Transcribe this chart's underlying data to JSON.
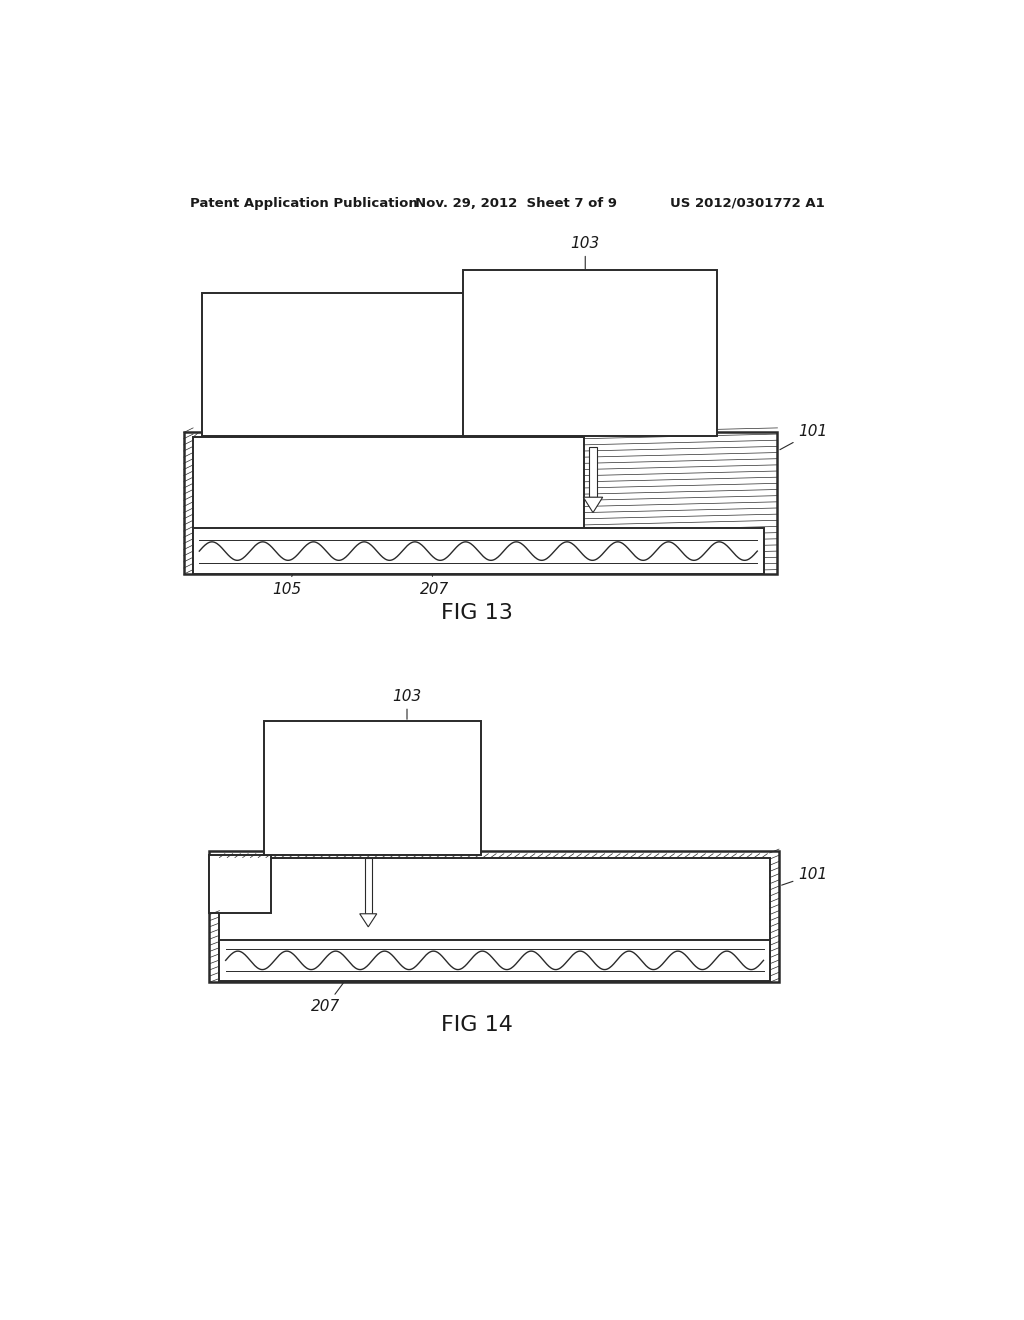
{
  "bg_color": "#ffffff",
  "header_left": "Patent Application Publication",
  "header_mid": "Nov. 29, 2012  Sheet 7 of 9",
  "header_right": "US 2012/0301772 A1",
  "fig13_label": "FIG 13",
  "fig14_label": "FIG 14",
  "text_color": "#1a1a1a",
  "line_color": "#2a2a2a"
}
